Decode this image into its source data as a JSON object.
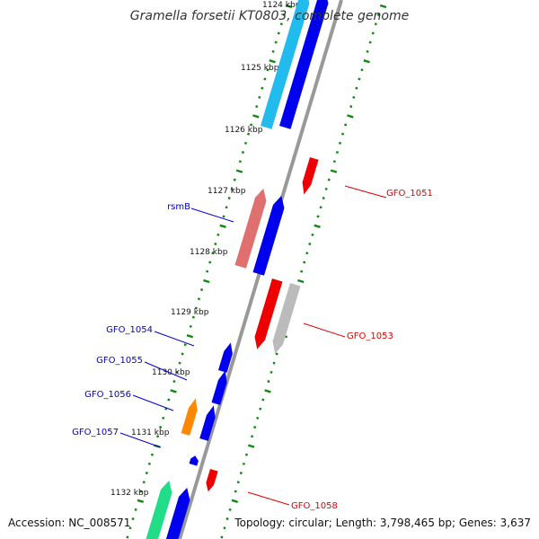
{
  "title": "Gramella forsetii KT0803, complete genome",
  "footer": {
    "accession": "Accession: NC_008571",
    "topology": "Topology: circular; Length: 3,798,465 bp; Genes: 3,637"
  },
  "colors": {
    "backbone": "#999999",
    "tick": "#118811",
    "forward_label": "#0000cc",
    "reverse_label": "#dd0000"
  },
  "kbp_ticks": [
    "1124 kbp",
    "1125 kbp",
    "1126 kbp",
    "1127 kbp",
    "1128 kbp",
    "1129 kbp",
    "1130 kbp",
    "1131 kbp",
    "1132 kbp"
  ],
  "genes": [
    {
      "label": "",
      "color": "#22bbee",
      "strand": "forward"
    },
    {
      "label": "",
      "color": "#0000ee",
      "strand": "forward"
    },
    {
      "label": "GFO_1051",
      "color": "#ee0000",
      "strand": "reverse"
    },
    {
      "label": "",
      "color": "#e07070",
      "strand": "forward"
    },
    {
      "label": "rsmB",
      "color": "#0000ee",
      "strand": "forward"
    },
    {
      "label": "",
      "color": "#ee0000",
      "strand": "reverse"
    },
    {
      "label": "GFO_1053",
      "color": "#bbbbbb",
      "strand": "reverse"
    },
    {
      "label": "GFO_1054",
      "color": "#0000ee",
      "strand": "forward"
    },
    {
      "label": "GFO_1055",
      "color": "#0000ee",
      "strand": "forward"
    },
    {
      "label": "GFO_1056",
      "color": "#ff8800",
      "strand": "forward"
    },
    {
      "label": "",
      "color": "#0000ee",
      "strand": "forward"
    },
    {
      "label": "GFO_1057",
      "color": "#0000ee",
      "strand": "forward"
    },
    {
      "label": "GFO_1058",
      "color": "#ee0000",
      "strand": "reverse"
    },
    {
      "label": "",
      "color": "#22dd88",
      "strand": "forward"
    },
    {
      "label": "",
      "color": "#0000ee",
      "strand": "forward"
    }
  ]
}
